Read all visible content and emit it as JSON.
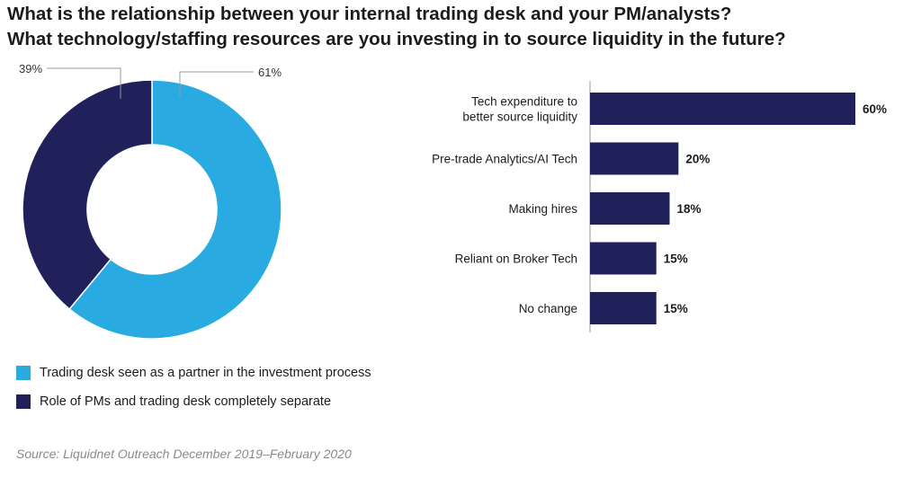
{
  "title": {
    "line1": "What is the relationship between your internal trading desk and your PM/analysts?",
    "line2": "What technology/staffing resources are you investing in to source liquidity in the future?"
  },
  "colors": {
    "light_blue": "#29abe2",
    "navy": "#20205a",
    "axis": "#9a9a9a"
  },
  "chart_data": [
    {
      "type": "pie",
      "donut": true,
      "slices": [
        {
          "name": "Trading desk seen as a partner in the investment process",
          "value": 61,
          "label": "61%",
          "color": "#29abe2"
        },
        {
          "name": "Role of PMs and trading desk completely separate",
          "value": 39,
          "label": "39%",
          "color": "#20205a"
        }
      ]
    },
    {
      "type": "bar",
      "orientation": "horizontal",
      "categories": [
        [
          "Tech expenditure to",
          "better source liquidity"
        ],
        [
          "Pre-trade Analytics/AI Tech"
        ],
        [
          "Making hires"
        ],
        [
          "Reliant on Broker Tech"
        ],
        [
          "No change"
        ]
      ],
      "values": [
        60,
        20,
        18,
        15,
        15
      ],
      "value_labels": [
        "60%",
        "20%",
        "18%",
        "15%",
        "15%"
      ],
      "xlim": [
        0,
        60
      ],
      "grid": false
    }
  ],
  "legend": [
    {
      "label": "Trading desk seen as a partner in the investment process",
      "color": "#29abe2"
    },
    {
      "label": "Role of PMs and trading desk completely separate",
      "color": "#20205a"
    }
  ],
  "source": "Source: Liquidnet Outreach December 2019–February 2020"
}
